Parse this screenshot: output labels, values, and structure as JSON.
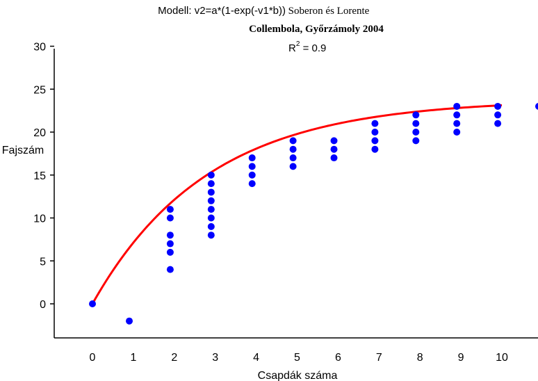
{
  "chart_data": {
    "type": "scatter",
    "title_line1_a": "Modell: v2=a*(1-exp(-v1*b))",
    "title_line1_b": "Soberon és Lorente",
    "title_line2": "Collembola, Győrzámoly 2004",
    "r2_base": "R",
    "r2_sup": "2",
    "r2_value": " = 0.9",
    "xlabel": "Csapdák száma",
    "ylabel": "Fajszám",
    "xlim": [
      -1,
      11
    ],
    "ylim": [
      -4,
      30
    ],
    "xticks": [
      0,
      1,
      2,
      3,
      4,
      5,
      6,
      7,
      8,
      9,
      10
    ],
    "yticks": [
      0,
      5,
      10,
      15,
      20,
      25,
      30
    ],
    "point_color": "#0000ff",
    "curve_color": "#ff0000",
    "points": [
      [
        0,
        0
      ],
      [
        0.9,
        -2
      ],
      [
        1.9,
        4
      ],
      [
        1.9,
        6
      ],
      [
        1.9,
        7
      ],
      [
        1.9,
        8
      ],
      [
        1.9,
        10
      ],
      [
        1.9,
        11
      ],
      [
        2.9,
        8
      ],
      [
        2.9,
        9
      ],
      [
        2.9,
        10
      ],
      [
        2.9,
        11
      ],
      [
        2.9,
        12
      ],
      [
        2.9,
        13
      ],
      [
        2.9,
        14
      ],
      [
        2.9,
        15
      ],
      [
        3.9,
        14
      ],
      [
        3.9,
        15
      ],
      [
        3.9,
        16
      ],
      [
        3.9,
        17
      ],
      [
        4.9,
        16
      ],
      [
        4.9,
        17
      ],
      [
        4.9,
        18
      ],
      [
        4.9,
        19
      ],
      [
        5.9,
        17
      ],
      [
        5.9,
        18
      ],
      [
        5.9,
        19
      ],
      [
        6.9,
        18
      ],
      [
        6.9,
        19
      ],
      [
        6.9,
        20
      ],
      [
        6.9,
        21
      ],
      [
        7.9,
        19
      ],
      [
        7.9,
        20
      ],
      [
        7.9,
        21
      ],
      [
        7.9,
        22
      ],
      [
        8.9,
        20
      ],
      [
        8.9,
        21
      ],
      [
        8.9,
        22
      ],
      [
        8.9,
        23
      ],
      [
        9.9,
        21
      ],
      [
        9.9,
        22
      ],
      [
        9.9,
        23
      ],
      [
        10.9,
        23
      ]
    ],
    "curve": {
      "a": 23.8,
      "b": 0.356,
      "x_from": 0,
      "x_to": 10
    }
  }
}
